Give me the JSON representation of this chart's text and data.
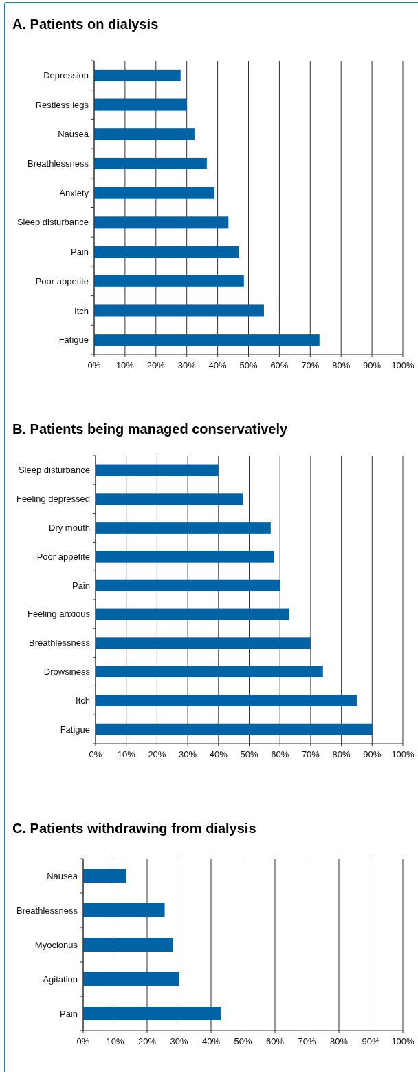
{
  "chart_data": [
    {
      "type": "bar",
      "orientation": "horizontal",
      "title": "A. Patients on dialysis",
      "categories": [
        "Depression",
        "Restless legs",
        "Nausea",
        "Breathlessness",
        "Anxiety",
        "Sleep disturbance",
        "Pain",
        "Poor appetite",
        "Itch",
        "Fatigue"
      ],
      "values": [
        28,
        30,
        32.5,
        36.5,
        39,
        43.5,
        47,
        48.5,
        55,
        73
      ],
      "color": "#0063a6",
      "xlim": [
        0,
        100
      ],
      "xticks": [
        {
          "value": 0,
          "label": "0%"
        },
        {
          "value": 10,
          "label": "10%"
        },
        {
          "value": 20,
          "label": "20%"
        },
        {
          "value": 30,
          "label": "30%"
        },
        {
          "value": 40,
          "label": "40%"
        },
        {
          "value": 50,
          "label": "50%"
        },
        {
          "value": 60,
          "label": "60%"
        },
        {
          "value": 70,
          "label": "70%"
        },
        {
          "value": 80,
          "label": "80%"
        },
        {
          "value": 90,
          "label": "90%"
        },
        {
          "value": 100,
          "label": "100%"
        }
      ],
      "grid": "x"
    },
    {
      "type": "bar",
      "orientation": "horizontal",
      "title": "B. Patients being managed conservatively",
      "categories": [
        "Sleep disturbance",
        "Feeling depressed",
        "Dry mouth",
        "Poor appetite",
        "Pain",
        "Feeling anxious",
        "Breathlessness",
        "Drowsiness",
        "Itch",
        "Fatigue"
      ],
      "values": [
        40,
        48,
        57,
        58,
        60,
        63,
        70,
        74,
        85,
        90
      ],
      "color": "#0063a6",
      "xlim": [
        0,
        100
      ],
      "xticks": [
        {
          "value": 0,
          "label": "0%"
        },
        {
          "value": 10,
          "label": "10%"
        },
        {
          "value": 20,
          "label": "20%"
        },
        {
          "value": 30,
          "label": "30%"
        },
        {
          "value": 40,
          "label": "40%"
        },
        {
          "value": 50,
          "label": "50%"
        },
        {
          "value": 60,
          "label": "60%"
        },
        {
          "value": 70,
          "label": "70%"
        },
        {
          "value": 80,
          "label": "80%"
        },
        {
          "value": 90,
          "label": "90%"
        },
        {
          "value": 100,
          "label": "100%"
        }
      ],
      "grid": "x"
    },
    {
      "type": "bar",
      "orientation": "horizontal",
      "title": "C. Patients withdrawing from dialysis",
      "categories": [
        "Nausea",
        "Breathlessness",
        "Myoclonus",
        "Agitation",
        "Pain"
      ],
      "values": [
        13.5,
        25.5,
        28,
        30,
        43
      ],
      "color": "#0063a6",
      "xlim": [
        0,
        100
      ],
      "xticks": [
        {
          "value": 0,
          "label": "0%"
        },
        {
          "value": 10,
          "label": "10%"
        },
        {
          "value": 20,
          "label": "20%"
        },
        {
          "value": 30,
          "label": "30%"
        },
        {
          "value": 40,
          "label": "40%"
        },
        {
          "value": 50,
          "label": "50%"
        },
        {
          "value": 60,
          "label": "60%"
        },
        {
          "value": 70,
          "label": "70%"
        },
        {
          "value": 80,
          "label": "80%"
        },
        {
          "value": 90,
          "label": "90%"
        },
        {
          "value": 100,
          "label": "100%"
        }
      ],
      "grid": "x"
    }
  ]
}
